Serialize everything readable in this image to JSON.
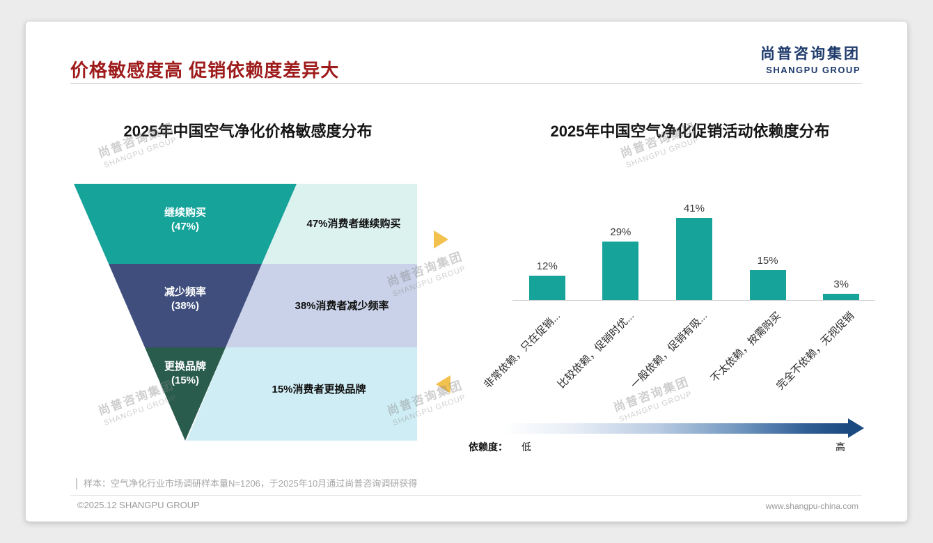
{
  "page": {
    "title": "价格敏感度高 促销依赖度差异大",
    "logo_cn": "尚普咨询集团",
    "logo_en": "SHANGPU GROUP",
    "watermark_cn": "尚普咨询集团",
    "watermark_en": "SHANGPU GROUP",
    "sample_note": "样本：空气净化行业市场调研样本量N=1206，于2025年10月通过尚普咨询调研获得",
    "footer_left": "©2025.12 SHANGPU GROUP",
    "footer_right": "www.shangpu-china.com"
  },
  "colors": {
    "title_red": "#9E1B1B",
    "logo_navy": "#1F3B6C",
    "arrow_yellow": "#F2C14E",
    "gradient_end": "#1B4A80"
  },
  "chart_data": [
    {
      "type": "funnel",
      "title": "2025年中国空气净化价格敏感度分布",
      "categories": [
        "继续购买",
        "减少频率",
        "更换品牌"
      ],
      "values": [
        47,
        38,
        15
      ],
      "value_labels": [
        "(47%)",
        "(38%)",
        "(15%)"
      ],
      "annotations": [
        "47%消费者继续购买",
        "38%消费者减少频率",
        "15%消费者更换品牌"
      ],
      "colors": [
        "#16A39A",
        "#3F4E7D",
        "#2A5C4E"
      ],
      "annotation_bg": [
        "#DCF2EF",
        "#C9D2E8",
        "#CFEDF4"
      ]
    },
    {
      "type": "bar",
      "title": "2025年中国空气净化促销活动依赖度分布",
      "categories": [
        "非常依赖，只在促销...",
        "比较依赖，促销时优...",
        "一般依赖，促销有吸...",
        "不太依赖，按需购买",
        "完全不依赖，无视促销"
      ],
      "values": [
        12,
        29,
        41,
        15,
        3
      ],
      "data_labels": [
        "12%",
        "29%",
        "41%",
        "15%",
        "3%"
      ],
      "ylim": [
        0,
        45
      ],
      "grid": false,
      "legend": "none",
      "bar_color": "#16A39A",
      "axis_annotation": {
        "label": "依赖度：",
        "low": "低",
        "high": "高"
      }
    }
  ]
}
